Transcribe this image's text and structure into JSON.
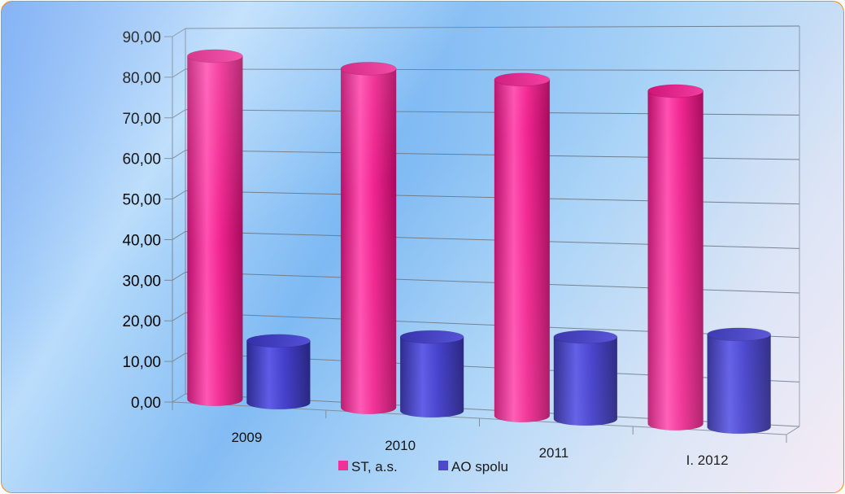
{
  "chart_data": {
    "type": "bar",
    "style": "3d-cylinder",
    "categories": [
      "2009",
      "2010",
      "2011",
      "I. 2012"
    ],
    "series": [
      {
        "name": "ST, a.s.",
        "color": "#ee1f8f",
        "values": [
          84.0,
          81.0,
          78.5,
          76.0
        ]
      },
      {
        "name": "AO spolu",
        "color": "#3a35c8",
        "values": [
          15.0,
          17.5,
          19.0,
          21.0
        ]
      }
    ],
    "y_ticks": [
      "0,00",
      "10,00",
      "20,00",
      "30,00",
      "40,00",
      "50,00",
      "60,00",
      "70,00",
      "80,00",
      "90,00"
    ],
    "ylim": [
      0,
      90
    ],
    "grid": true,
    "legend": "bottom-center",
    "background_colors": [
      "#5c9af2",
      "#b9dcfb",
      "#f4e8f4"
    ],
    "border_color": "#f08a1a"
  }
}
